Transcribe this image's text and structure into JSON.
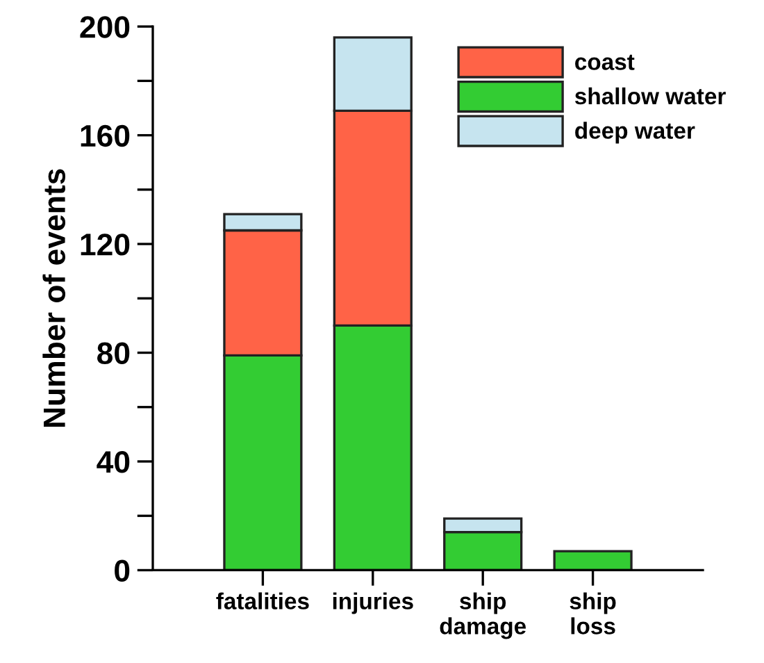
{
  "chart_data": {
    "type": "bar",
    "stacked": true,
    "ylabel": "Number of events",
    "categories": [
      "fatalities",
      "injuries",
      "ship\ndamage",
      "ship\nloss"
    ],
    "series": [
      {
        "name": "shallow water",
        "color": "#33cc33",
        "values": [
          79,
          90,
          14,
          7
        ]
      },
      {
        "name": "coast",
        "color": "#ff6347",
        "values": [
          46,
          79,
          0,
          0
        ]
      },
      {
        "name": "deep water",
        "color": "#c6e4ef",
        "values": [
          6,
          27,
          5,
          0
        ]
      }
    ],
    "ylim": [
      0,
      200
    ],
    "yticks": [
      0,
      {
        "value": 20,
        "label": null
      },
      40,
      {
        "value": 60,
        "label": null
      },
      80,
      {
        "value": 100,
        "label": null
      },
      120,
      {
        "value": 140,
        "label": null
      },
      160,
      {
        "value": 180,
        "label": null
      },
      200
    ],
    "grid": false,
    "legend": "top right"
  }
}
